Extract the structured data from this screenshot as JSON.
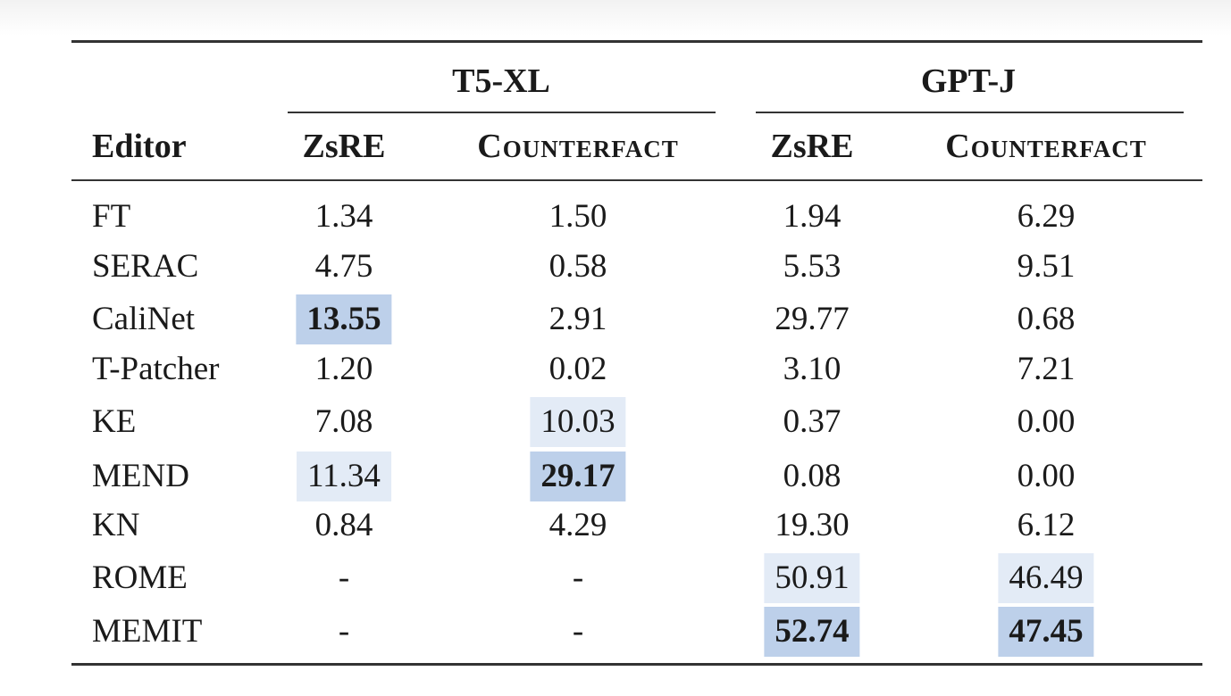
{
  "table": {
    "groups": [
      {
        "label": "T5-XL"
      },
      {
        "label": "GPT-J"
      }
    ],
    "header": {
      "editor": "Editor",
      "columns": [
        "ZsRE",
        "Counterfact",
        "ZsRE",
        "Counterfact"
      ]
    },
    "rows": [
      {
        "editor": "FT",
        "values": [
          "1.34",
          "1.50",
          "1.94",
          "6.29"
        ]
      },
      {
        "editor": "SERAC",
        "values": [
          "4.75",
          "0.58",
          "5.53",
          "9.51"
        ]
      },
      {
        "editor": "CaliNet",
        "values": [
          "13.55",
          "2.91",
          "29.77",
          "0.68"
        ]
      },
      {
        "editor": "T-Patcher",
        "values": [
          "1.20",
          "0.02",
          "3.10",
          "7.21"
        ]
      },
      {
        "editor": "KE",
        "values": [
          "7.08",
          "10.03",
          "0.37",
          "0.00"
        ]
      },
      {
        "editor": "MEND",
        "values": [
          "11.34",
          "29.17",
          "0.08",
          "0.00"
        ]
      },
      {
        "editor": "KN",
        "values": [
          "0.84",
          "4.29",
          "19.30",
          "6.12"
        ]
      },
      {
        "editor": "ROME",
        "values": [
          "-",
          "-",
          "50.91",
          "46.49"
        ]
      },
      {
        "editor": "MEMIT",
        "values": [
          "-",
          "-",
          "52.74",
          "47.45"
        ]
      }
    ],
    "highlights": [
      {
        "row": 2,
        "col": 0,
        "level": "best"
      },
      {
        "row": 5,
        "col": 0,
        "level": "second"
      },
      {
        "row": 4,
        "col": 1,
        "level": "second"
      },
      {
        "row": 5,
        "col": 1,
        "level": "best"
      },
      {
        "row": 7,
        "col": 2,
        "level": "second"
      },
      {
        "row": 8,
        "col": 2,
        "level": "best"
      },
      {
        "row": 7,
        "col": 3,
        "level": "second"
      },
      {
        "row": 8,
        "col": 3,
        "level": "best"
      }
    ],
    "colors": {
      "best": "#bdd0ea",
      "second": "#e3ebf6",
      "rule": "#333333"
    }
  }
}
